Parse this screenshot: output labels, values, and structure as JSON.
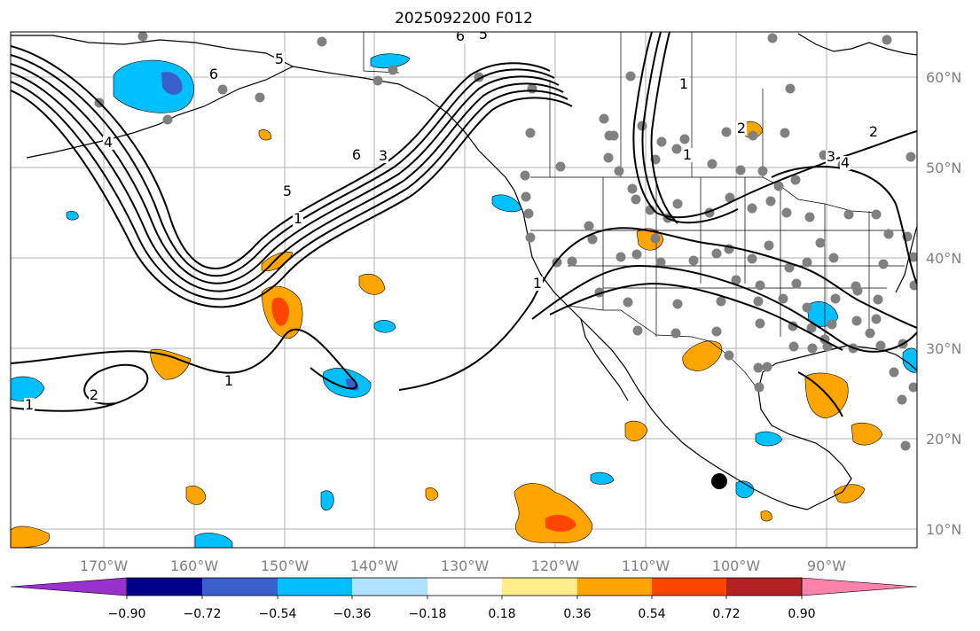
{
  "title": "2025092200 F012",
  "colors": {
    "grid": "#b0b0b0",
    "tick_label": "#808080",
    "station": "#808080",
    "contour": "#000000",
    "coast": "#000000"
  },
  "axes": {
    "lon_labels": [
      "170°W",
      "160°W",
      "150°W",
      "140°W",
      "130°W",
      "120°W",
      "110°W",
      "100°W",
      "90°W"
    ],
    "lat_labels": [
      "60°N",
      "50°N",
      "40°N",
      "30°N",
      "20°N",
      "10°N"
    ]
  },
  "colorbar": {
    "colors": [
      "#9932cc",
      "#00008b",
      "#3a5fcd",
      "#00bfff",
      "#b0e2ff",
      "#ffffff",
      "#ffec8b",
      "#ffa500",
      "#ff4500",
      "#b22222",
      "#ff82ab"
    ],
    "tick_labels": [
      "−0.90",
      "−0.72",
      "−0.54",
      "−0.36",
      "−0.18",
      "0.18",
      "0.36",
      "0.54",
      "0.72",
      "0.90"
    ]
  },
  "contour_labels": [
    {
      "text": "1"
    },
    {
      "text": "2"
    },
    {
      "text": "1"
    },
    {
      "text": "1"
    },
    {
      "text": "5"
    },
    {
      "text": "6"
    },
    {
      "text": "3"
    },
    {
      "text": "1"
    },
    {
      "text": "1"
    },
    {
      "text": "1"
    },
    {
      "text": "2"
    },
    {
      "text": "3"
    },
    {
      "text": "4"
    },
    {
      "text": "5"
    },
    {
      "text": "6"
    },
    {
      "text": "5"
    },
    {
      "text": "4"
    },
    {
      "text": "6"
    },
    {
      "text": "2"
    }
  ]
}
